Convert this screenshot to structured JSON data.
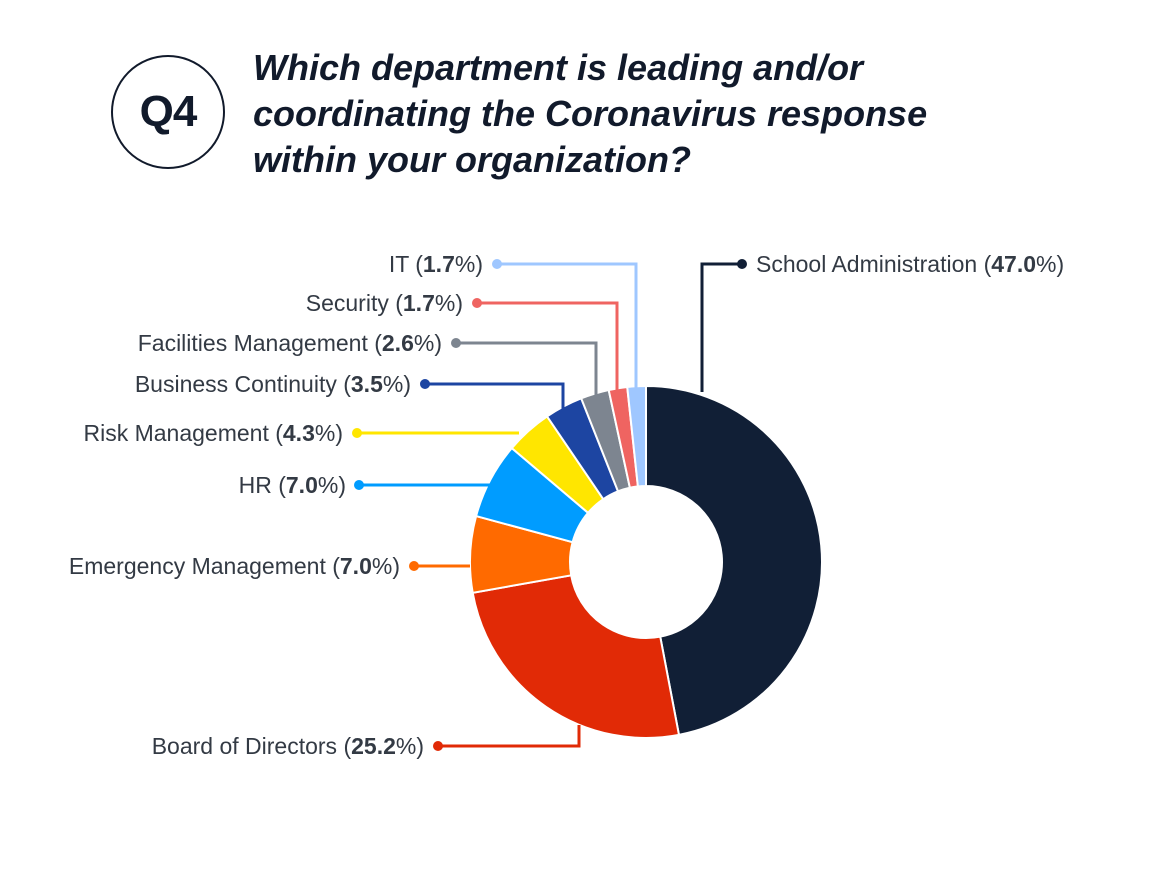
{
  "badge": {
    "text": "Q4"
  },
  "title": "Which department is leading and/or coordinating the Coronavirus response within your organization?",
  "chart_data": {
    "type": "pie",
    "variant": "donut",
    "title": "Which department is leading and/or coordinating the Coronavirus response within your organization?",
    "unit": "%",
    "slices": [
      {
        "label": "School Administration",
        "value": 47.0,
        "color": "#111f36"
      },
      {
        "label": "Board of Directors",
        "value": 25.2,
        "color": "#e12a06"
      },
      {
        "label": "Emergency Management",
        "value": 7.0,
        "color": "#ff6a00"
      },
      {
        "label": "HR",
        "value": 7.0,
        "color": "#009cff"
      },
      {
        "label": "Risk Management",
        "value": 4.3,
        "color": "#ffe600"
      },
      {
        "label": "Business Continuity",
        "value": 3.5,
        "color": "#1d45a2"
      },
      {
        "label": "Facilities Management",
        "value": 2.6,
        "color": "#7d8590"
      },
      {
        "label": "Security",
        "value": 1.7,
        "color": "#ef6461"
      },
      {
        "label": "IT",
        "value": 1.7,
        "color": "#9fc7ff"
      }
    ]
  }
}
